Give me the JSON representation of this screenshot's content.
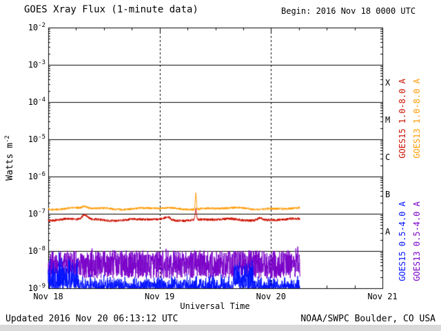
{
  "header": {
    "title": "GOES Xray Flux (1-minute data)",
    "begin_label": "Begin: 2016 Nov 18 0000 UTC"
  },
  "footer": {
    "updated": "Updated 2016 Nov 20 06:13:12 UTC",
    "source": "NOAA/SWPC Boulder, CO USA"
  },
  "chart_data": {
    "type": "line",
    "title": "GOES Xray Flux (1-minute data)",
    "xlabel": "Universal Time",
    "ylabel_prefix": "Watts m",
    "ylabel_exp": "-2",
    "y_tick_base": "10",
    "y_scale": "log10",
    "y_exponents": [
      -2,
      -3,
      -4,
      -5,
      -6,
      -7,
      -8,
      -9
    ],
    "x_ticks": [
      {
        "day": 0,
        "label": "Nov 18"
      },
      {
        "day": 1,
        "label": "Nov 19"
      },
      {
        "day": 2,
        "label": "Nov 20"
      },
      {
        "day": 3,
        "label": "Nov 21"
      }
    ],
    "x_range_days": [
      0,
      3
    ],
    "data_end_day": 2.26,
    "grid": {
      "horizontal": "solid",
      "vertical_dashed_days": [
        1,
        2
      ]
    },
    "flare_classes": [
      {
        "label": "X",
        "between_exponents": [
          -4,
          -3
        ]
      },
      {
        "label": "M",
        "between_exponents": [
          -5,
          -4
        ]
      },
      {
        "label": "C",
        "between_exponents": [
          -6,
          -5
        ]
      },
      {
        "label": "B",
        "between_exponents": [
          -7,
          -6
        ]
      },
      {
        "label": "A",
        "between_exponents": [
          -8,
          -7
        ]
      }
    ],
    "legend_position": "right-rotated",
    "series": [
      {
        "name": "GOES13 0.5-4.0 A",
        "color": "#7a00c8",
        "channel": "short",
        "base_log10": -8.36,
        "noise_log10": 0.38,
        "style": "dense-noise"
      },
      {
        "name": "GOES15 0.5-4.0 A",
        "color": "#0011ff",
        "channel": "short",
        "base_log10": -9.05,
        "noise_log10": 0.3,
        "style": "spikes-from-floor",
        "boost_regions": [
          {
            "start": 0.0,
            "end": 0.27,
            "amp": 0.75
          },
          {
            "start": 1.66,
            "end": 1.84,
            "amp": 0.7
          }
        ]
      },
      {
        "name": "GOES15 1.0-8.0 A",
        "color": "#cc1100",
        "channel": "long",
        "base_log10": -7.16,
        "noise_log10": 0.035,
        "style": "line",
        "events": [
          {
            "day": 0.33,
            "amp": 0.13,
            "width": 0.025
          },
          {
            "day": 1.07,
            "amp": 0.07,
            "width": 0.02
          },
          {
            "day": 1.325,
            "amp": 0.3,
            "width": 0.006
          },
          {
            "day": 1.9,
            "amp": 0.06,
            "width": 0.02
          }
        ]
      },
      {
        "name": "GOES13 1.0-8.0 A",
        "color": "#ff9900",
        "channel": "long",
        "base_log10": -6.86,
        "noise_log10": 0.03,
        "style": "line",
        "events": [
          {
            "day": 0.33,
            "amp": 0.05,
            "width": 0.02
          },
          {
            "day": 1.325,
            "amp": 0.42,
            "width": 0.005
          }
        ]
      }
    ],
    "right_axis_series_labels": [
      {
        "text": "GOES15 1.0-8.0 A",
        "color": "#cc1100",
        "column": 0,
        "group": "top"
      },
      {
        "text": "GOES13 1.0-8.0 A",
        "color": "#ff9900",
        "column": 1,
        "group": "top"
      },
      {
        "text": "GOES15 0.5-4.0 A",
        "color": "#0011ff",
        "column": 0,
        "group": "bottom"
      },
      {
        "text": "GOES13 0.5-4.0 A",
        "color": "#7a00c8",
        "column": 1,
        "group": "bottom"
      }
    ]
  }
}
